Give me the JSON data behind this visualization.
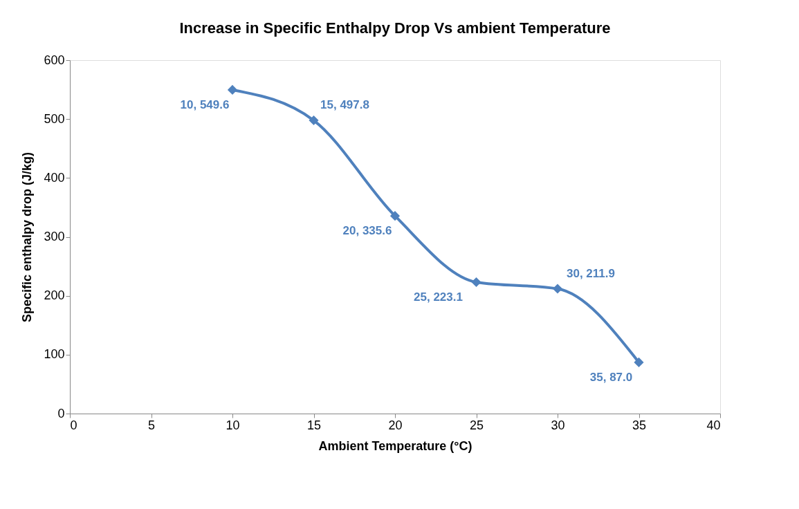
{
  "chart_data": {
    "type": "line",
    "title": "Increase in Specific Enthalpy Drop Vs ambient Temperature",
    "xlabel": "Ambient Temperature (°C)",
    "ylabel": "Specific enthalpy drop (J/kg)",
    "x": [
      10,
      15,
      20,
      25,
      30,
      35
    ],
    "series": [
      {
        "color": "#4f81bd",
        "values": [
          549.6,
          497.8,
          335.6,
          223.1,
          211.9,
          87.0
        ],
        "value_labels": [
          "10, 549.6",
          "15, 497.8",
          "20, 335.6",
          "25, 223.1",
          "30, 211.9",
          "35, 87.0"
        ]
      }
    ],
    "xlim": [
      0,
      40
    ],
    "xticks": [
      0,
      5,
      10,
      15,
      20,
      25,
      30,
      35,
      40
    ],
    "ylim": [
      0,
      600
    ],
    "yticks": [
      0,
      100,
      200,
      300,
      400,
      500,
      600
    ],
    "grid": false,
    "marker": "diamond",
    "line_style": "solid"
  }
}
